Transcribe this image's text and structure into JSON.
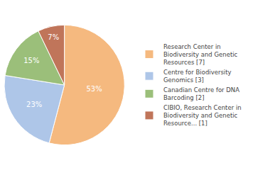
{
  "chart_data": {
    "type": "pie",
    "categories": [
      "Research Center in\nBiodiversity and Genetic\nResources [7]",
      "Centre for Biodiversity\nGenomics [3]",
      "Canadian Centre for DNA\nBarcoding [2]",
      "CIBIO, Research Center in\nBiodiversity and Genetic\nResource... [1]"
    ],
    "values": [
      53,
      23,
      15,
      7
    ],
    "value_labels": [
      "53%",
      "23%",
      "15%",
      "7%"
    ],
    "colors": [
      "#f5b97f",
      "#aec6e8",
      "#9bbf7a",
      "#c0755a"
    ],
    "data_labels": true,
    "legend": "right"
  }
}
